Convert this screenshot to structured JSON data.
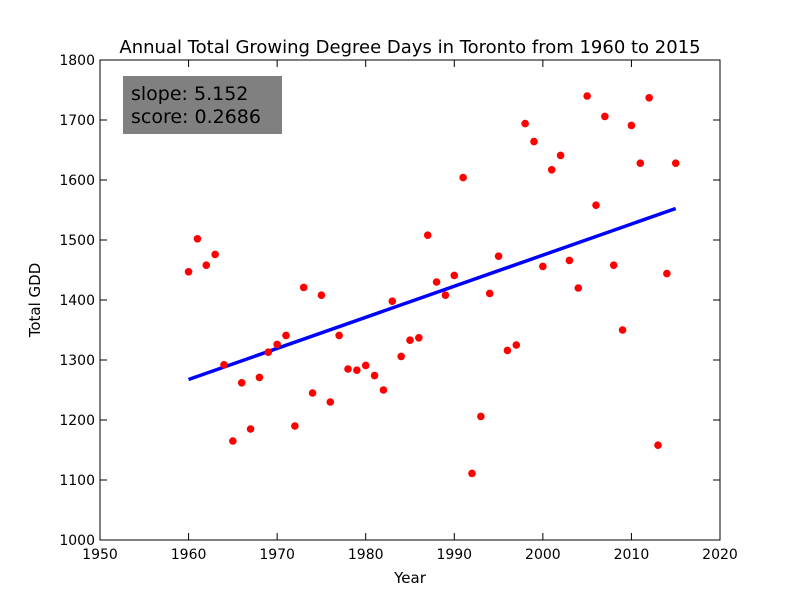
{
  "chart_data": {
    "type": "scatter",
    "title": "Annual Total Growing Degree Days in Toronto from 1960 to 2015",
    "xlabel": "Year",
    "ylabel": "Total GDD",
    "xlim": [
      1950,
      2020
    ],
    "ylim": [
      1000,
      1800
    ],
    "xticks": [
      "1950",
      "1960",
      "1970",
      "1980",
      "1990",
      "2000",
      "2010",
      "2020"
    ],
    "yticks": [
      "1000",
      "1100",
      "1200",
      "1300",
      "1400",
      "1500",
      "1600",
      "1700",
      "1800"
    ],
    "grid": false,
    "points": {
      "color": "#ff0000",
      "x": [
        1960,
        1961,
        1962,
        1963,
        1964,
        1965,
        1966,
        1967,
        1968,
        1969,
        1970,
        1971,
        1972,
        1973,
        1974,
        1975,
        1976,
        1977,
        1978,
        1979,
        1980,
        1981,
        1982,
        1983,
        1984,
        1985,
        1986,
        1987,
        1988,
        1989,
        1990,
        1991,
        1992,
        1993,
        1994,
        1995,
        1996,
        1997,
        1998,
        1999,
        2000,
        2001,
        2002,
        2003,
        2004,
        2005,
        2006,
        2007,
        2008,
        2009,
        2010,
        2011,
        2012,
        2013,
        2014,
        2015
      ],
      "y": [
        1447,
        1502,
        1458,
        1476,
        1292,
        1165,
        1262,
        1185,
        1271,
        1313,
        1326,
        1341,
        1190,
        1421,
        1245,
        1408,
        1230,
        1341,
        1285,
        1283,
        1291,
        1274,
        1250,
        1398,
        1306,
        1333,
        1337,
        1508,
        1430,
        1408,
        1441,
        1604,
        1111,
        1206,
        1411,
        1473,
        1316,
        1325,
        1694,
        1664,
        1456,
        1617,
        1641,
        1466,
        1420,
        1740,
        1558,
        1706,
        1458,
        1350,
        1691,
        1628,
        1737,
        1158,
        1444,
        1628
      ]
    },
    "trendline": {
      "color": "#0000ff",
      "x": [
        1960,
        2015
      ],
      "y": [
        1267.5,
        1552.5
      ]
    },
    "annotation": {
      "lines": [
        "slope: 5.152",
        "score: 0.2686"
      ],
      "background": "#808080"
    }
  }
}
